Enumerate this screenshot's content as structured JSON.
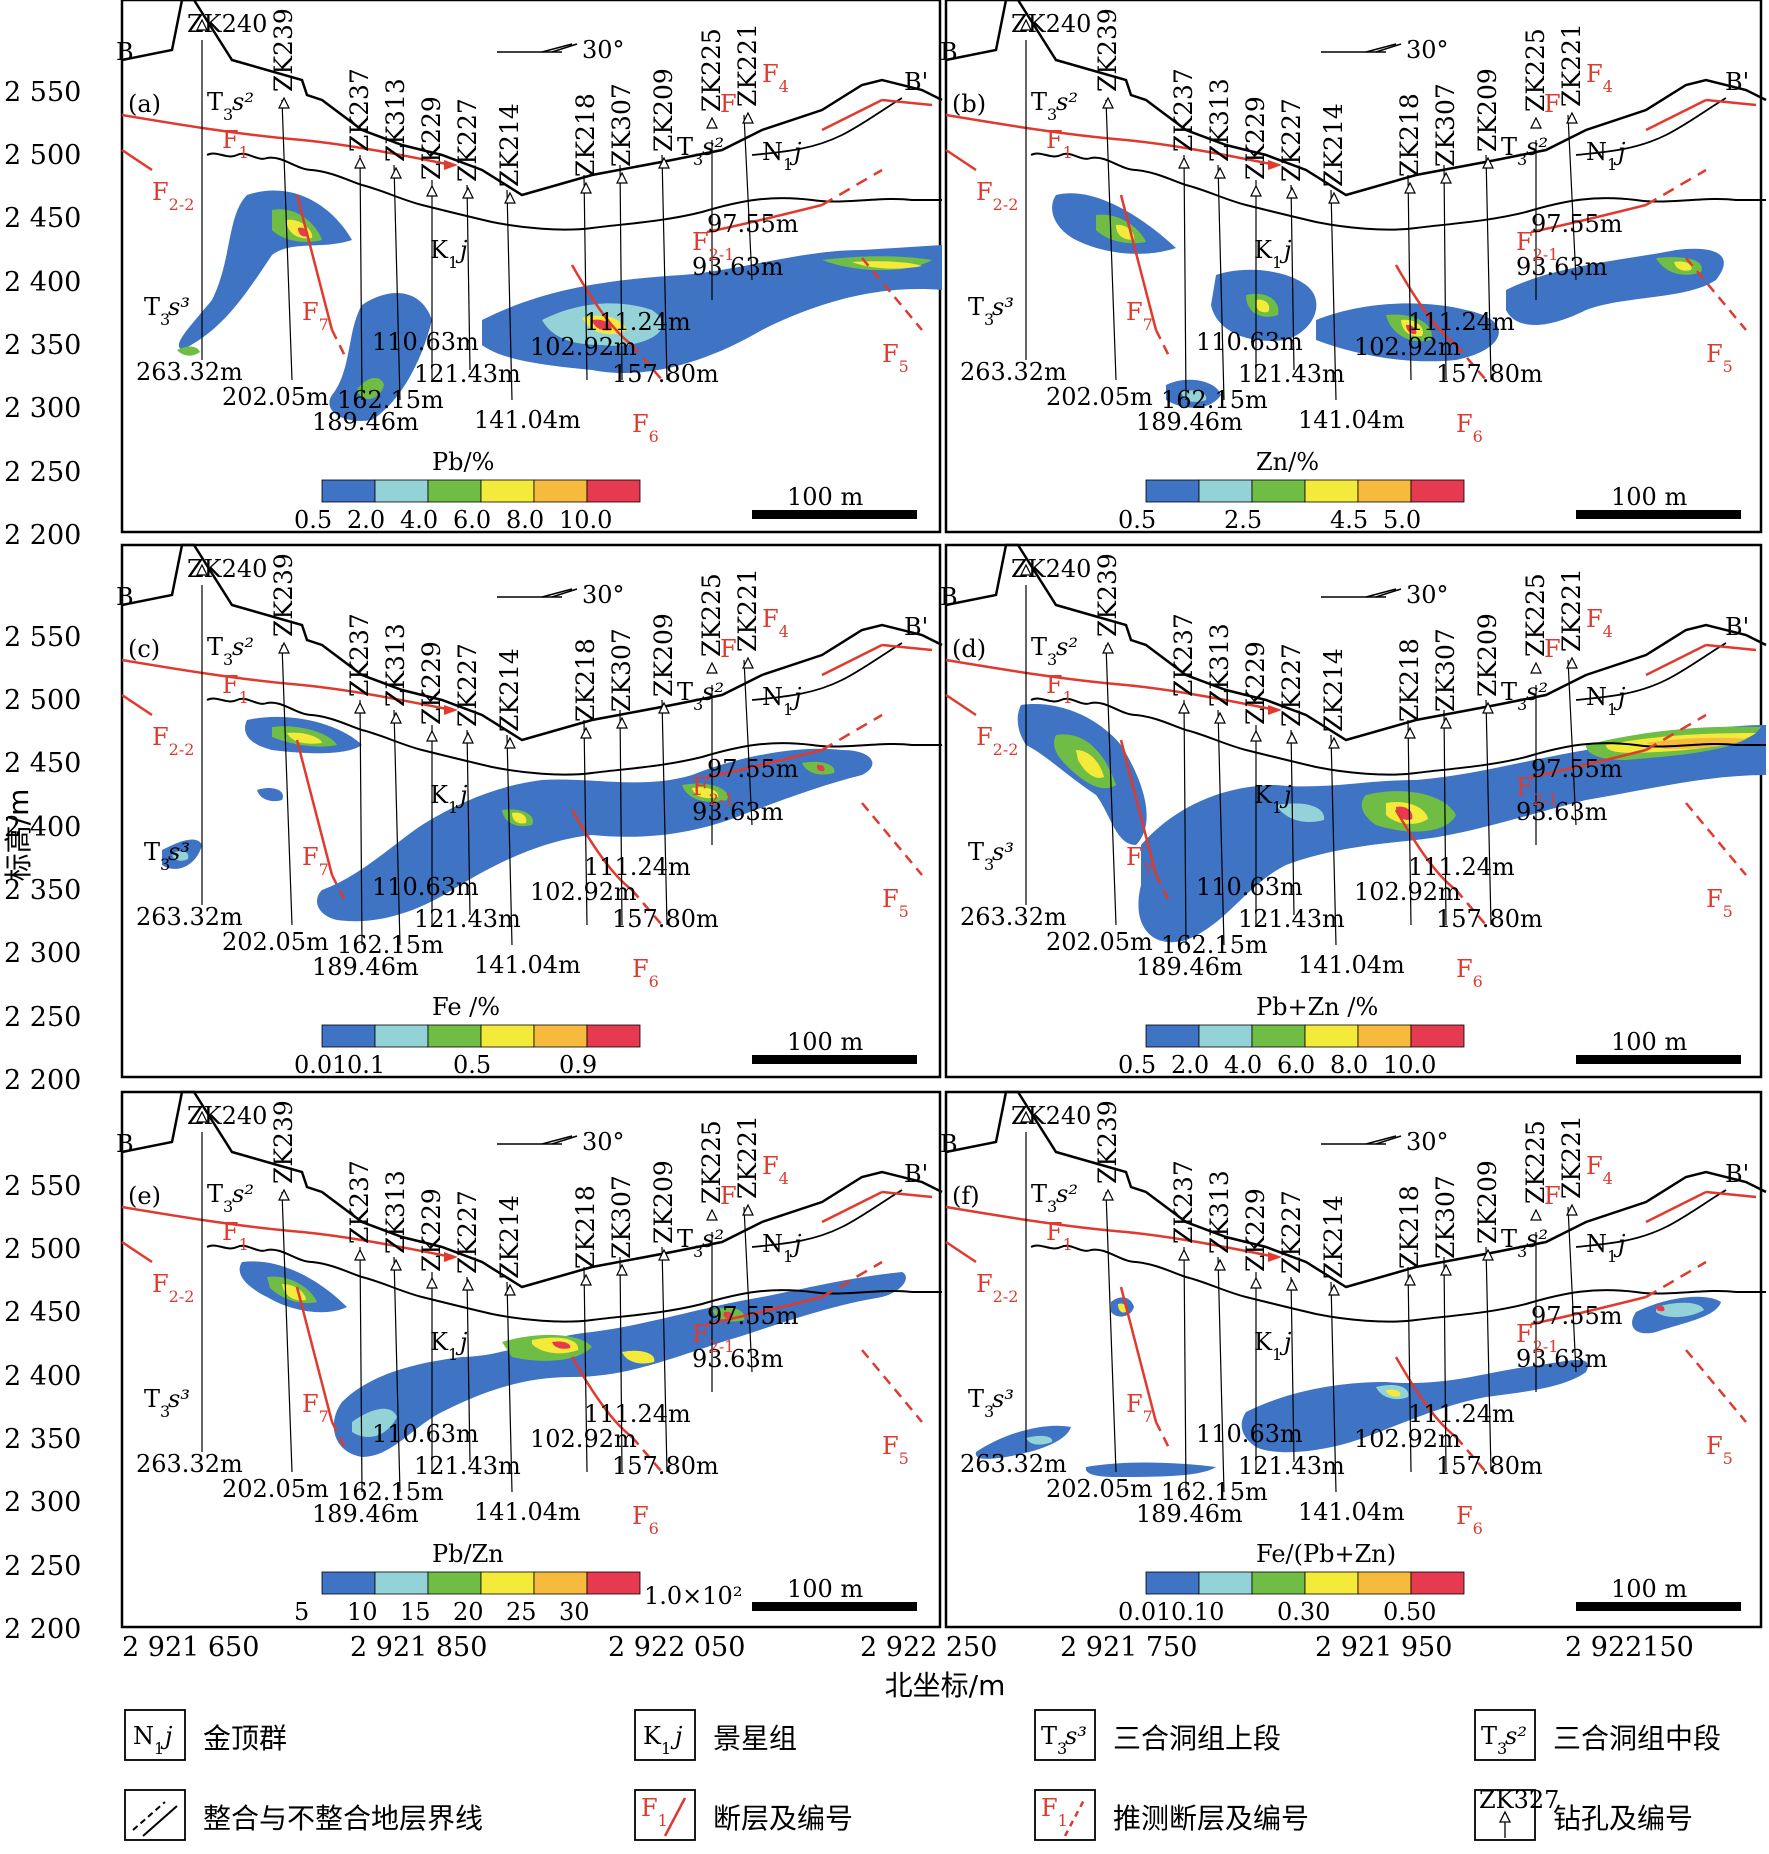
{
  "colors": {
    "ramp": [
      "#3f73c4",
      "#93d2d6",
      "#6fbd45",
      "#f3ea3a",
      "#f6ba3d",
      "#e53a50"
    ],
    "fault": "#e03a2f",
    "line": "#000000"
  },
  "y_axis": {
    "title": "标高/m",
    "ticks": [
      "2 550",
      "2 500",
      "2 450",
      "2 400",
      "2 350",
      "2 300",
      "2 250",
      "2 200"
    ]
  },
  "x_axis": {
    "title": "北坐标/m",
    "ticks_left": [
      "2 921 650",
      "2 921 850",
      "2 922 050",
      "2 922 250"
    ],
    "ticks_right": [
      "2 921 750",
      "2 921 950",
      "2 922150"
    ]
  },
  "common": {
    "end_left": "B",
    "end_right": "B'",
    "azimuth": "30°",
    "scale": "100 m",
    "boreholes": [
      "ZK240",
      "ZK239",
      "ZK237",
      "ZK313",
      "ZK229",
      "ZK227",
      "ZK214",
      "ZK218",
      "ZK307",
      "ZK209",
      "ZK225",
      "ZK221"
    ],
    "depths": [
      "263.32m",
      "202.05m",
      "189.46m",
      "162.15m",
      "110.63m",
      "121.43m",
      "141.04m",
      "102.92m",
      "111.24m",
      "157.80m",
      "97.55m",
      "93.63m"
    ],
    "faults": [
      "F1",
      "F2-2",
      "F2-1",
      "F4",
      "F5",
      "F6",
      "F7",
      "F"
    ],
    "strata": [
      "T3s2",
      "T3s3",
      "K1j",
      "N1j"
    ]
  },
  "panels": [
    {
      "id": "(a)",
      "legend_title": "Pb/%",
      "legend_ticks": [
        "0.5",
        "2.0",
        "4.0",
        "6.0",
        "8.0",
        "10.0"
      ],
      "legend_suffix": ""
    },
    {
      "id": "(b)",
      "legend_title": "Zn/%",
      "legend_ticks": [
        "0.5",
        "",
        "2.5",
        "",
        "4.5",
        "5.0"
      ],
      "legend_suffix": ""
    },
    {
      "id": "(c)",
      "legend_title": "Fe /%",
      "legend_ticks": [
        "0.01",
        "0.1",
        "",
        "0.5",
        "",
        "0.9"
      ],
      "legend_suffix": ""
    },
    {
      "id": "(d)",
      "legend_title": "Pb+Zn /%",
      "legend_ticks": [
        "0.5",
        "2.0",
        "4.0",
        "6.0",
        "8.0",
        "10.0"
      ],
      "legend_suffix": ""
    },
    {
      "id": "(e)",
      "legend_title": "Pb/Zn",
      "legend_ticks": [
        "5",
        "10",
        "15",
        "20",
        "25",
        "30"
      ],
      "legend_suffix": "1.0×10²"
    },
    {
      "id": "(f)",
      "legend_title": "Fe/(Pb+Zn)",
      "legend_ticks": [
        "0.01",
        "0.10",
        "",
        "0.30",
        "",
        "0.50"
      ],
      "legend_suffix": ""
    }
  ],
  "key": [
    {
      "symbol": "N1j",
      "label": "金顶群"
    },
    {
      "symbol": "K1j",
      "label": "景星组"
    },
    {
      "symbol": "T3s3",
      "label": "三合洞组上段"
    },
    {
      "symbol": "T3s2",
      "label": "三合洞组中段"
    },
    {
      "symbol": "contact",
      "label": "整合与不整合地层界线"
    },
    {
      "symbol": "F1",
      "label": "断层及编号"
    },
    {
      "symbol": "F1 (inferred)",
      "label": "推测断层及编号"
    },
    {
      "symbol": "ZK327",
      "label": "钻孔及编号"
    }
  ]
}
